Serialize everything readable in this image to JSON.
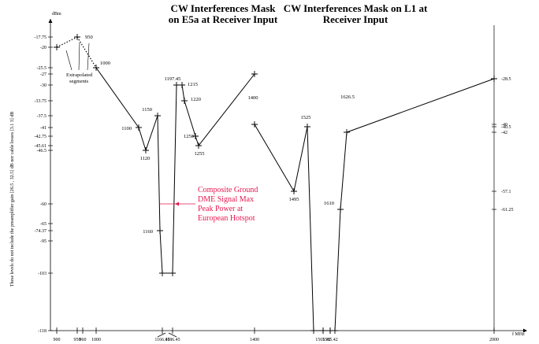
{
  "chart_data": {
    "type": "line",
    "titles": [
      {
        "lines": [
          "CW Interferences Mask",
          "on E5a at Receiver Input"
        ]
      },
      {
        "lines": [
          "CW Interferences Mask on L1 at",
          "Receiver Input"
        ]
      }
    ],
    "ylabel": "These levels do not include the preamplifier gain [26.5 , 32.5] dB nor cable losses [3.1 3] dB",
    "yunit": "dBm",
    "xunit": "f MHz",
    "x_tick_labels": [
      "900",
      "950",
      "960",
      "1000",
      "1166.45",
      "1186.45",
      "1400",
      "1565.42",
      "1585.42",
      "2000"
    ],
    "y_left_tick_labels": [
      "-17.75",
      "-20",
      "-25.5",
      "-27",
      "-30",
      "-33.75",
      "-37.5",
      "-41",
      "-42.75",
      "-45.61",
      "-46.5",
      "-60",
      "-65",
      "-74.37",
      "-95",
      "-103",
      "-118"
    ],
    "y_right_tick_labels": [
      "-28.5",
      "-40",
      "-40.5",
      "-42",
      "-57.1",
      "-61.25"
    ],
    "series": [
      {
        "points": [
          {
            "x": 900,
            "y": -20,
            "style": "dotted"
          },
          {
            "x": 950,
            "y": -17.75,
            "label": "950",
            "style": "dotted"
          },
          {
            "x": 1000,
            "y": -25.5,
            "label": "1000"
          },
          {
            "x": 1100,
            "y": -41,
            "label": "1100"
          },
          {
            "x": 1120,
            "y": -46.5,
            "label": "1120"
          },
          {
            "x": 1150,
            "y": -37.5,
            "label": "1150"
          },
          {
            "x": 1160,
            "y": -74.37,
            "label": "1160"
          },
          {
            "x": 1166.45,
            "y": -103
          },
          {
            "x": 1186.45,
            "y": -103
          },
          {
            "x": 1197.45,
            "y": -30,
            "label": "1197.45"
          },
          {
            "x": 1215,
            "y": -30,
            "label": "1215"
          },
          {
            "x": 1220,
            "y": -33.75,
            "label": "1220"
          },
          {
            "x": 1250,
            "y": -42.75,
            "label": "1250"
          },
          {
            "x": 1255,
            "y": -45.61,
            "label": "1255"
          },
          {
            "x": 1400,
            "y": -27,
            "label": "1400"
          }
        ]
      },
      {
        "points": [
          {
            "x": 1400,
            "y": -40
          },
          {
            "x": 1495,
            "y": -57.1,
            "label": "1495"
          },
          {
            "x": 1525,
            "y": -40.5,
            "label": "1525"
          },
          {
            "x": 1555,
            "y": -118
          },
          {
            "x": 1565.42,
            "y": -118
          },
          {
            "x": 1585.42,
            "y": -118
          },
          {
            "x": 1595,
            "y": -118
          },
          {
            "x": 1610,
            "y": -61.25,
            "label": "1610"
          },
          {
            "x": 1626.5,
            "y": -42,
            "label": "1626.5"
          },
          {
            "x": 2000,
            "y": -28.5
          }
        ]
      }
    ],
    "annotations": {
      "extrapolated": [
        "Extrapolated",
        "segments"
      ],
      "dme": [
        "Composite Ground",
        "DME Signal Max",
        "Peak Power at",
        "European Hotspot"
      ],
      "dme_level": -60
    },
    "colors": {
      "line": "#000000",
      "dme": "#e8174f"
    }
  }
}
